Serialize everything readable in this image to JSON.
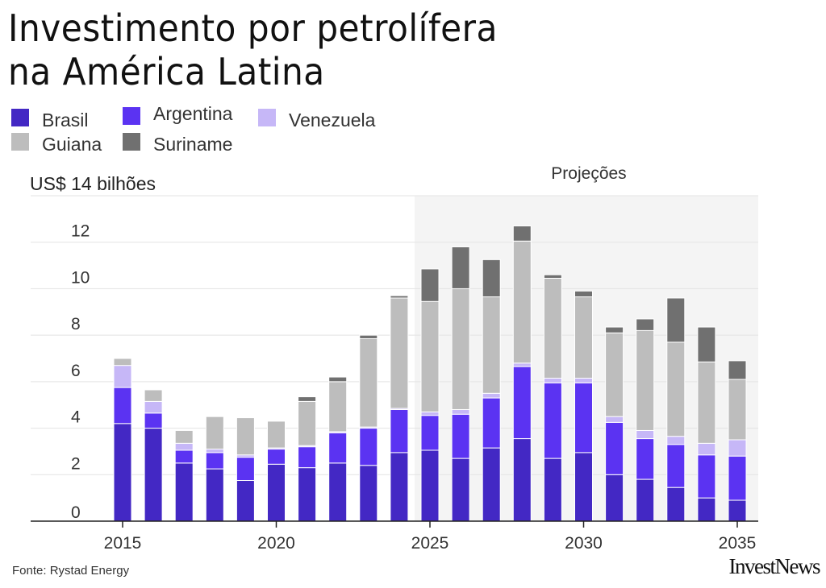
{
  "title_lines": [
    "Investimento por petrolífera",
    "na América Latina"
  ],
  "legend": [
    {
      "name": "Brasil",
      "color": "#4328c4"
    },
    {
      "name": "Argentina",
      "color": "#5b33f2"
    },
    {
      "name": "Venezuela",
      "color": "#c6b7f7"
    },
    {
      "name": "Guiana",
      "color": "#bdbdbd"
    },
    {
      "name": "Suriname",
      "color": "#707070"
    }
  ],
  "source": "Fonte: Rystad Energy",
  "brand": "InvestNews",
  "chart_data": {
    "type": "bar",
    "stacked": true,
    "title": "Investimento por petrolífera na América Latina",
    "ylabel": "US$ 14 bilhões",
    "ylim": [
      0,
      14
    ],
    "yticks": [
      "0",
      "2",
      "4",
      "6",
      "8",
      "10",
      "12"
    ],
    "xtick_labels": [
      "2015",
      "2020",
      "2025",
      "2030",
      "2035"
    ],
    "projection_label": "Projeções",
    "projection_start": 2025,
    "categories": [
      2015,
      2016,
      2017,
      2018,
      2019,
      2020,
      2021,
      2022,
      2023,
      2024,
      2025,
      2026,
      2027,
      2028,
      2029,
      2030,
      2031,
      2032,
      2033,
      2034,
      2035
    ],
    "series": [
      {
        "name": "Brasil",
        "color": "#4328c4",
        "values": [
          4.2,
          4.0,
          2.5,
          2.25,
          1.75,
          2.45,
          2.3,
          2.5,
          2.4,
          2.95,
          3.05,
          2.7,
          3.15,
          3.55,
          2.7,
          2.95,
          2.0,
          1.8,
          1.45,
          1.0,
          0.9
        ]
      },
      {
        "name": "Argentina",
        "color": "#5b33f2",
        "values": [
          1.55,
          0.65,
          0.55,
          0.7,
          1.0,
          0.65,
          0.9,
          1.3,
          1.6,
          1.85,
          1.5,
          1.9,
          2.15,
          3.1,
          3.25,
          3.0,
          2.25,
          1.75,
          1.85,
          1.85,
          1.9
        ]
      },
      {
        "name": "Venezuela",
        "color": "#c6b7f7",
        "values": [
          0.95,
          0.5,
          0.3,
          0.15,
          0.1,
          0.05,
          0.05,
          0.05,
          0.05,
          0.05,
          0.15,
          0.2,
          0.2,
          0.15,
          0.2,
          0.2,
          0.25,
          0.35,
          0.35,
          0.5,
          0.7
        ]
      },
      {
        "name": "Guiana",
        "color": "#bdbdbd",
        "values": [
          0.3,
          0.5,
          0.55,
          1.4,
          1.6,
          1.15,
          1.9,
          2.15,
          3.8,
          4.75,
          4.75,
          5.2,
          4.15,
          5.25,
          4.3,
          3.5,
          3.6,
          4.3,
          4.05,
          3.5,
          2.6
        ]
      },
      {
        "name": "Suriname",
        "color": "#707070",
        "values": [
          0,
          0,
          0,
          0,
          0,
          0,
          0.2,
          0.2,
          0.15,
          0.1,
          1.4,
          1.8,
          1.6,
          0.65,
          0.15,
          0.25,
          0.25,
          0.5,
          1.9,
          1.5,
          0.8
        ]
      }
    ]
  }
}
